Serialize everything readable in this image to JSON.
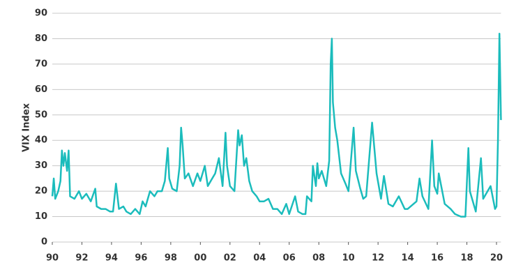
{
  "chart_data": {
    "type": "line",
    "y_label": "VIX Index",
    "series": [
      {
        "name": "VIX Index",
        "color": "#1bbcbc",
        "x": [
          1990.0,
          1990.1,
          1990.2,
          1990.4,
          1990.55,
          1990.65,
          1990.75,
          1990.85,
          1991.0,
          1991.1,
          1991.2,
          1991.5,
          1991.8,
          1992.0,
          1992.3,
          1992.6,
          1992.9,
          1993.0,
          1993.3,
          1993.6,
          1993.9,
          1994.1,
          1994.3,
          1994.5,
          1994.8,
          1995.0,
          1995.3,
          1995.6,
          1995.9,
          1996.1,
          1996.3,
          1996.6,
          1996.9,
          1997.1,
          1997.4,
          1997.6,
          1997.8,
          1997.9,
          1998.1,
          1998.4,
          1998.6,
          1998.7,
          1998.8,
          1998.95,
          1999.2,
          1999.5,
          1999.8,
          2000.0,
          2000.3,
          2000.5,
          2000.8,
          2001.0,
          2001.25,
          2001.5,
          2001.7,
          2001.8,
          2002.0,
          2002.3,
          2002.55,
          2002.65,
          2002.8,
          2002.95,
          2003.1,
          2003.3,
          2003.5,
          2003.8,
          2004.0,
          2004.3,
          2004.6,
          2004.9,
          2005.2,
          2005.5,
          2005.8,
          2006.0,
          2006.4,
          2006.6,
          2006.9,
          2007.1,
          2007.2,
          2007.5,
          2007.6,
          2007.8,
          2007.9,
          2008.0,
          2008.2,
          2008.5,
          2008.7,
          2008.8,
          2008.88,
          2008.95,
          2009.1,
          2009.25,
          2009.5,
          2009.8,
          2010.0,
          2010.35,
          2010.5,
          2010.8,
          2011.0,
          2011.2,
          2011.6,
          2011.75,
          2011.9,
          2012.2,
          2012.4,
          2012.7,
          2013.0,
          2013.4,
          2013.8,
          2014.0,
          2014.6,
          2014.8,
          2015.0,
          2015.4,
          2015.65,
          2015.8,
          2016.0,
          2016.1,
          2016.5,
          2016.9,
          2017.2,
          2017.6,
          2017.9,
          2018.1,
          2018.2,
          2018.6,
          2018.95,
          2019.1,
          2019.6,
          2019.9,
          2020.0,
          2020.1,
          2020.2,
          2020.3
        ],
        "values": [
          18,
          25,
          17,
          20,
          24,
          36,
          30,
          35,
          28,
          36,
          18,
          17,
          20,
          17,
          19,
          16,
          21,
          14,
          13,
          13,
          12,
          12,
          23,
          13,
          14,
          12,
          11,
          13,
          11,
          16,
          14,
          20,
          18,
          20,
          20,
          24,
          37,
          25,
          21,
          20,
          30,
          45,
          38,
          25,
          27,
          22,
          27,
          24,
          30,
          22,
          25,
          27,
          33,
          22,
          43,
          30,
          22,
          20,
          44,
          38,
          42,
          30,
          33,
          24,
          20,
          18,
          16,
          16,
          17,
          13,
          13,
          11,
          15,
          11,
          18,
          12,
          11,
          11,
          18,
          16,
          30,
          22,
          31,
          25,
          28,
          22,
          32,
          70,
          80,
          55,
          45,
          40,
          27,
          23,
          20,
          45,
          28,
          21,
          17,
          18,
          47,
          37,
          27,
          17,
          26,
          15,
          14,
          18,
          13,
          13,
          16,
          25,
          18,
          13,
          40,
          22,
          19,
          27,
          15,
          13,
          11,
          10,
          10,
          37,
          20,
          12,
          33,
          17,
          22,
          13,
          14,
          40,
          82,
          48
        ]
      }
    ],
    "xlim": [
      1990,
      2020.3
    ],
    "xticks": [
      {
        "value": 1990,
        "label": "90"
      },
      {
        "value": 1992,
        "label": "92"
      },
      {
        "value": 1994,
        "label": "94"
      },
      {
        "value": 1996,
        "label": "96"
      },
      {
        "value": 1998,
        "label": "98"
      },
      {
        "value": 2000,
        "label": "00"
      },
      {
        "value": 2002,
        "label": "02"
      },
      {
        "value": 2004,
        "label": "04"
      },
      {
        "value": 2006,
        "label": "06"
      },
      {
        "value": 2008,
        "label": "08"
      },
      {
        "value": 2010,
        "label": "10"
      },
      {
        "value": 2012,
        "label": "12"
      },
      {
        "value": 2014,
        "label": "14"
      },
      {
        "value": 2016,
        "label": "16"
      },
      {
        "value": 2018,
        "label": "18"
      },
      {
        "value": 2020,
        "label": "20"
      }
    ],
    "ylim": [
      0,
      90
    ],
    "yticks": [
      0,
      10,
      20,
      30,
      40,
      50,
      60,
      70,
      80,
      90
    ],
    "grid": true
  }
}
